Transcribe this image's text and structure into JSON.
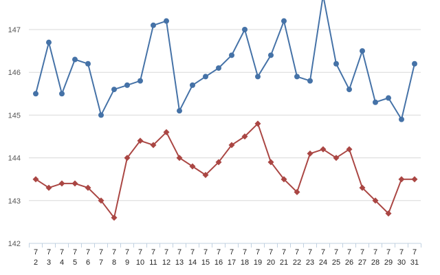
{
  "chart_data": {
    "type": "line",
    "categories": [
      {
        "month": "7",
        "day": "2"
      },
      {
        "month": "7",
        "day": "3"
      },
      {
        "month": "7",
        "day": "4"
      },
      {
        "month": "7",
        "day": "5"
      },
      {
        "month": "7",
        "day": "6"
      },
      {
        "month": "7",
        "day": "7"
      },
      {
        "month": "7",
        "day": "8"
      },
      {
        "month": "7",
        "day": "9"
      },
      {
        "month": "7",
        "day": "10"
      },
      {
        "month": "7",
        "day": "11"
      },
      {
        "month": "7",
        "day": "12"
      },
      {
        "month": "7",
        "day": "13"
      },
      {
        "month": "7",
        "day": "14"
      },
      {
        "month": "7",
        "day": "15"
      },
      {
        "month": "7",
        "day": "16"
      },
      {
        "month": "7",
        "day": "17"
      },
      {
        "month": "7",
        "day": "18"
      },
      {
        "month": "7",
        "day": "19"
      },
      {
        "month": "7",
        "day": "20"
      },
      {
        "month": "7",
        "day": "21"
      },
      {
        "month": "7",
        "day": "22"
      },
      {
        "month": "7",
        "day": "23"
      },
      {
        "month": "7",
        "day": "24"
      },
      {
        "month": "7",
        "day": "25"
      },
      {
        "month": "7",
        "day": "26"
      },
      {
        "month": "7",
        "day": "27"
      },
      {
        "month": "7",
        "day": "28"
      },
      {
        "month": "7",
        "day": "29"
      },
      {
        "month": "7",
        "day": "30"
      },
      {
        "month": "7",
        "day": "31"
      }
    ],
    "series": [
      {
        "color": "#4572A7",
        "marker": "circle",
        "values": [
          145.5,
          146.7,
          145.5,
          146.3,
          146.2,
          145.0,
          145.6,
          145.7,
          145.8,
          147.1,
          147.2,
          145.1,
          145.7,
          145.9,
          146.1,
          146.4,
          147.0,
          145.9,
          146.4,
          147.2,
          145.9,
          145.8,
          147.8,
          146.2,
          145.6,
          146.5,
          145.3,
          145.4,
          144.9,
          146.2
        ]
      },
      {
        "color": "#AA4643",
        "marker": "diamond",
        "values": [
          143.5,
          143.3,
          143.4,
          143.4,
          143.3,
          143.0,
          142.6,
          144.0,
          144.4,
          144.3,
          144.6,
          144.0,
          143.8,
          143.6,
          143.9,
          144.3,
          144.5,
          144.8,
          143.9,
          143.5,
          143.2,
          144.1,
          144.2,
          144.0,
          144.2,
          143.3,
          143.0,
          142.7,
          143.5,
          143.5
        ]
      }
    ],
    "yticks": [
      "142",
      "143",
      "144",
      "145",
      "146",
      "147"
    ],
    "ylim": [
      142,
      147.8
    ],
    "title": "",
    "xlabel": "",
    "ylabel": "",
    "grid": true,
    "legend": "none"
  }
}
